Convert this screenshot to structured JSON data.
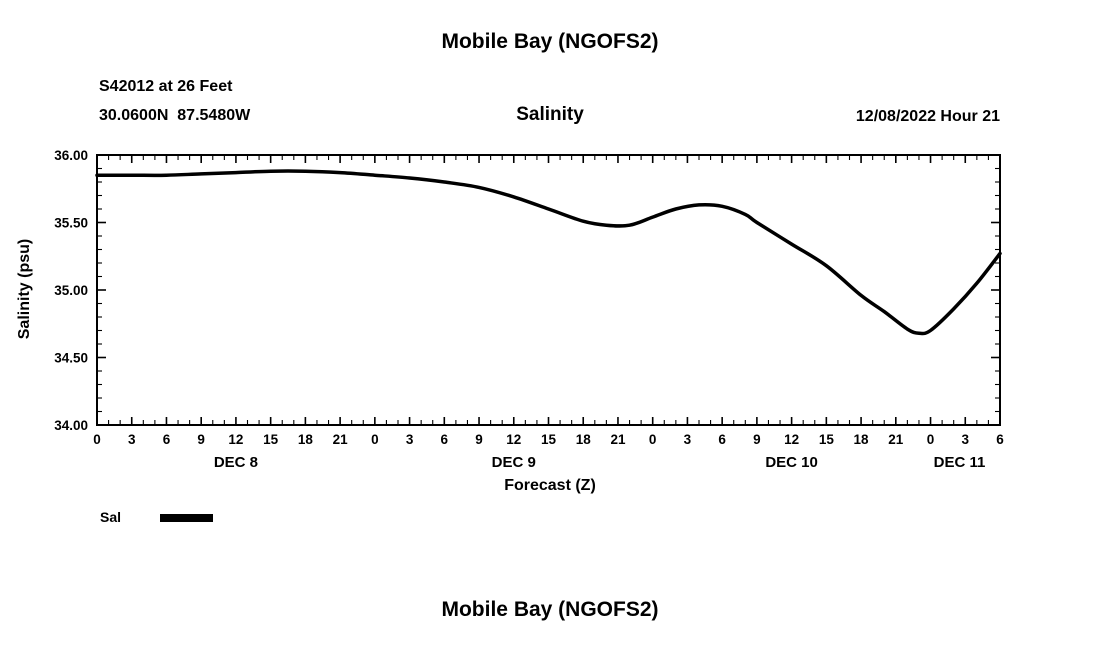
{
  "header": {
    "title": "Mobile Bay (NGOFS2)"
  },
  "meta": {
    "station": "S42012 at 26 Feet",
    "coords": "30.0600N  87.5480W",
    "datetime": "12/08/2022 Hour 21"
  },
  "legend": {
    "label": "Sal",
    "color": "#000000"
  },
  "footer": {
    "title": "Mobile Bay (NGOFS2)"
  },
  "chart_data": {
    "type": "line",
    "title": "Mobile Bay (NGOFS2)",
    "subtitle": "Salinity",
    "xlabel": "Forecast (Z)",
    "ylabel": "Salinity (psu)",
    "xlim": [
      0,
      78
    ],
    "ylim": [
      34.0,
      36.0
    ],
    "xtick_major_step": 3,
    "xtick_minor_step": 1,
    "xtick_label_mod": 24,
    "ytick_major_step": 0.5,
    "ytick_minor_step": 0.1,
    "ytick_labels": [
      "36.00",
      "35.50",
      "35.00",
      "34.50",
      "34.00"
    ],
    "grid": false,
    "legend_position": "bottom-left",
    "day_labels": [
      {
        "label": "DEC 8",
        "hour": 12
      },
      {
        "label": "DEC 9",
        "hour": 36
      },
      {
        "label": "DEC 10",
        "hour": 60
      },
      {
        "label": "DEC 11",
        "hour": 74.5
      }
    ],
    "series": [
      {
        "name": "Sal",
        "color": "#000000",
        "x": [
          0,
          3,
          6,
          9,
          12,
          15,
          18,
          21,
          24,
          27,
          30,
          33,
          36,
          39,
          42,
          44,
          46,
          48,
          50,
          52,
          54,
          56,
          57,
          60,
          63,
          66,
          68,
          70,
          71,
          72,
          74,
          76,
          78
        ],
        "y": [
          35.85,
          35.85,
          35.85,
          35.86,
          35.87,
          35.88,
          35.88,
          35.87,
          35.85,
          35.83,
          35.8,
          35.76,
          35.69,
          35.6,
          35.51,
          35.48,
          35.48,
          35.54,
          35.6,
          35.63,
          35.62,
          35.56,
          35.5,
          35.34,
          35.18,
          34.96,
          34.84,
          34.71,
          34.68,
          34.7,
          34.86,
          35.05,
          35.27
        ]
      }
    ]
  }
}
